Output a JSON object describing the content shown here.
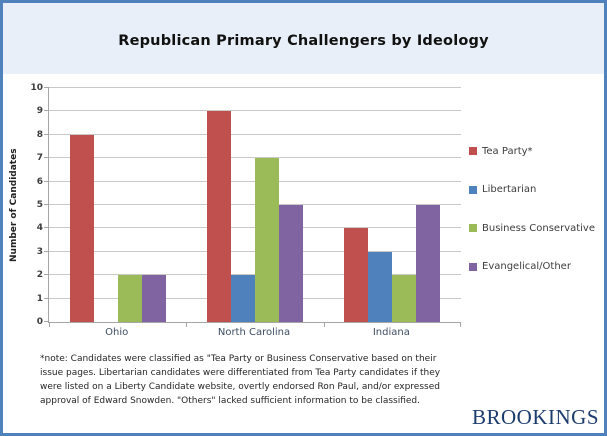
{
  "title": "Republican Primary Challengers by Ideology",
  "chart_data": {
    "type": "bar",
    "title": "Republican Primary Challengers by Ideology",
    "categories": [
      "Ohio",
      "North Carolina",
      "Indiana"
    ],
    "series": [
      {
        "name": "Tea Party*",
        "color": "#C0504D",
        "values": [
          8,
          9,
          4
        ]
      },
      {
        "name": "Libertarian",
        "color": "#4F81BD",
        "values": [
          0,
          2,
          3
        ]
      },
      {
        "name": "Business Conservative",
        "color": "#9BBB59",
        "values": [
          2,
          7,
          2
        ]
      },
      {
        "name": "Evangelical/Other",
        "color": "#8064A2",
        "values": [
          2,
          5,
          5
        ]
      }
    ],
    "xlabel": "",
    "ylabel": "Number of Candidates",
    "ylim": [
      0,
      10
    ],
    "ytick_step": 1,
    "grid": true,
    "legend_position": "right"
  },
  "footnote": {
    "lines": [
      "*note: Candidates were classified as \"Tea Party or Business Conservative based on their",
      "issue pages. Libertarian candidates were differentiated from Tea Party candidates if they",
      "were listed on a Liberty Candidate website, overtly endorsed Ron Paul, and/or expressed",
      "approval of Edward Snowden. \"Others\" lacked sufficient information to be classified."
    ]
  },
  "logo_text": "BROOKINGS",
  "colors": {
    "frame_border": "#4F81BD",
    "header_bg": "#E9EFF8",
    "logo": "#1C3C6E",
    "tea_party": "#C0504D",
    "libertarian": "#4F81BD",
    "business_conservative": "#9BBB59",
    "evangelical_other": "#8064A2"
  }
}
